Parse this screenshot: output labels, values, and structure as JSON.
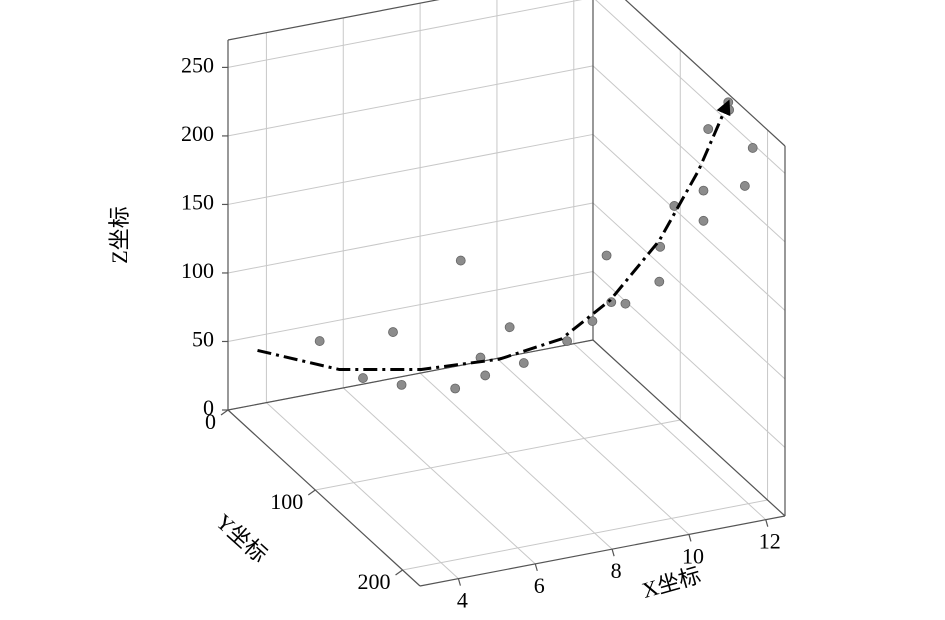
{
  "chart_data": {
    "type": "scatter3d",
    "x_label": "X坐标",
    "y_label": "Y坐标",
    "z_label": "Z坐标",
    "xlim": [
      3,
      12.5
    ],
    "ylim": [
      0,
      220
    ],
    "zlim": [
      0,
      270
    ],
    "xticks": [
      4,
      6,
      8,
      10,
      12
    ],
    "yticks": [
      0,
      100,
      200
    ],
    "zticks": [
      0,
      50,
      100,
      150,
      200,
      250
    ],
    "grid": true,
    "series": [
      {
        "type": "scatter",
        "color": "#8c8c8c",
        "x": [
          4.5,
          5.4,
          6.0,
          6.2,
          7.4,
          7.3,
          7.8,
          7.9,
          8.4,
          8.7,
          9.6,
          10.1,
          10.4,
          10.5,
          10.8,
          11.5,
          11.5,
          11.8,
          12.4,
          12.4,
          12.5,
          12.5,
          12.5,
          12.5,
          12.5
        ],
        "y": [
          39,
          49,
          57,
          58,
          73,
          71,
          78,
          79,
          85,
          88,
          98,
          105,
          108,
          109,
          112,
          120,
          121,
          124,
          131,
          131,
          132,
          155,
          156,
          174,
          183
        ],
        "z": [
          65,
          39,
          74,
          35,
          128,
          34,
          58,
          45,
          81,
          55,
          72,
          88,
          136,
          102,
          101,
          118,
          144,
          174,
          186,
          164,
          231,
          264,
          259,
          214,
          247
        ]
      },
      {
        "type": "line",
        "color": "#000000",
        "x": [
          3.2,
          4.9,
          6.6,
          8.2,
          9.5,
          10.5,
          11.5,
          12.3,
          12.5
        ],
        "y": [
          25,
          44,
          63,
          82,
          96,
          108,
          120,
          130,
          155
        ],
        "z": [
          57,
          45,
          47,
          57,
          73,
          103,
          148,
          201,
          264
        ]
      }
    ]
  }
}
